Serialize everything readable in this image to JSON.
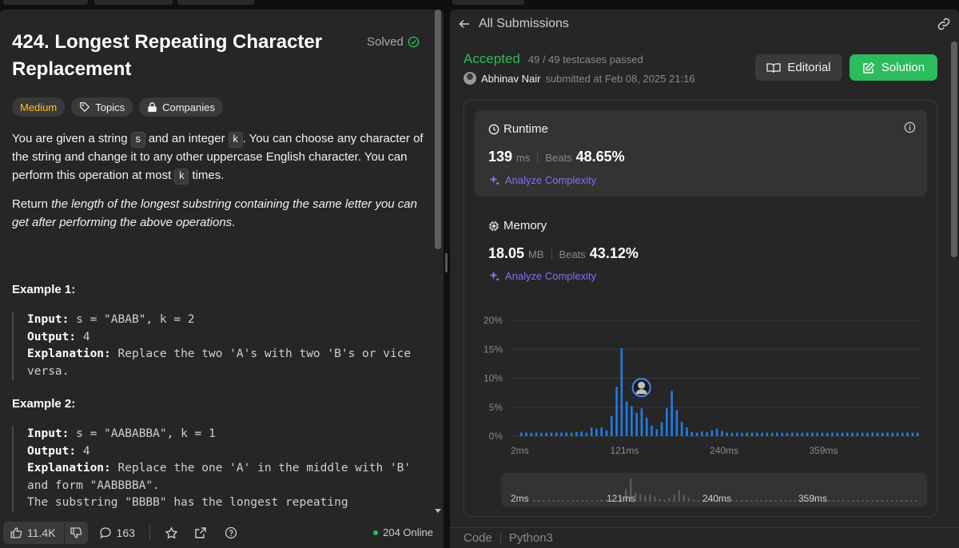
{
  "problem": {
    "title": "424. Longest Repeating Character Replacement",
    "solved_label": "Solved",
    "difficulty": "Medium",
    "topics_label": "Topics",
    "companies_label": "Companies",
    "desc": {
      "p1_a": "You are given a string ",
      "p1_s": "s",
      "p1_b": " and an integer ",
      "p1_k": "k",
      "p1_c": ". You can choose any character of the string and change it to any other uppercase English character. You can perform this operation at most ",
      "p1_k2": "k",
      "p1_d": " times.",
      "p2_a": "Return ",
      "p2_em": "the length of the longest substring containing the same letter you can get after performing the above operations",
      "p2_b": "."
    },
    "examples": [
      {
        "title": "Example 1:",
        "input_label": "Input:",
        "input": " s = \"ABAB\", k = 2",
        "output_label": "Output:",
        "output": " 4",
        "explanation_label": "Explanation:",
        "explanation": " Replace the two 'A's with two 'B's or vice versa."
      },
      {
        "title": "Example 2:",
        "input_label": "Input:",
        "input": " s = \"AABABBA\", k = 1",
        "output_label": "Output:",
        "output": " 4",
        "explanation_label": "Explanation:",
        "explanation": " Replace the one 'A' in the middle with 'B' and form \"AABBBBA\".",
        "extra": "The substring \"BBBB\" has the longest repeating"
      }
    ]
  },
  "footer": {
    "likes": "11.4K",
    "comments": "163",
    "online": "204 Online"
  },
  "submission": {
    "back_label": "All Submissions",
    "status": "Accepted",
    "testcases": "49 / 49 testcases passed",
    "author": "Abhinav Nair",
    "submitted_at": "submitted at Feb 08, 2025 21:16",
    "editorial_label": "Editorial",
    "solution_label": "Solution",
    "runtime": {
      "title": "Runtime",
      "value": "139",
      "unit": "ms",
      "beats_label": "Beats",
      "beats": "48.65%",
      "analyze": "Analyze Complexity"
    },
    "memory": {
      "title": "Memory",
      "value": "18.05",
      "unit": "MB",
      "beats_label": "Beats",
      "beats": "43.12%",
      "analyze": "Analyze Complexity"
    },
    "language_tab": "Code",
    "language": "Python3"
  },
  "colors": {
    "accent_green": "#2cbb5d",
    "bar_blue": "#1e7ee8",
    "difficulty_medium": "#ffc01e",
    "analyze_purple": "#8a6cf7"
  },
  "chart_data": {
    "type": "bar",
    "ylabel": "",
    "xlabel": "",
    "y_ticks": [
      "20%",
      "15%",
      "10%",
      "5%",
      "0%"
    ],
    "ylim": [
      0,
      20
    ],
    "x_tick_labels": [
      "2ms",
      "121ms",
      "240ms",
      "359ms"
    ],
    "x_tick_values": [
      2,
      121,
      240,
      359
    ],
    "x_range": [
      2,
      478
    ],
    "bin_ms": 6,
    "values": [
      0.6,
      0.6,
      0.6,
      0.6,
      0.6,
      0.6,
      0.6,
      0.6,
      0.6,
      0.6,
      0.6,
      0.7,
      0.8,
      0.6,
      1.5,
      1.3,
      1.5,
      1.0,
      3.5,
      8.5,
      15.2,
      6.0,
      5.2,
      4.0,
      4.8,
      3.2,
      1.8,
      1.2,
      2.4,
      4.8,
      7.8,
      4.5,
      2.5,
      1.5,
      0.7,
      0.6,
      0.8,
      0.7,
      1.0,
      1.3,
      0.9,
      0.6,
      0.6,
      0.6,
      0.6,
      0.6,
      0.6,
      0.6,
      0.6,
      0.6,
      0.6,
      0.6,
      0.6,
      0.6,
      0.6,
      0.6,
      0.6,
      0.6,
      0.6,
      0.6,
      0.6,
      0.6,
      0.6,
      0.6,
      0.6,
      0.6,
      0.6,
      0.6,
      0.6,
      0.6,
      0.6,
      0.6,
      0.6,
      0.6,
      0.6,
      0.6,
      0.6,
      0.6,
      0.6,
      0.6
    ],
    "user_bin_index": 24,
    "grid": true
  }
}
